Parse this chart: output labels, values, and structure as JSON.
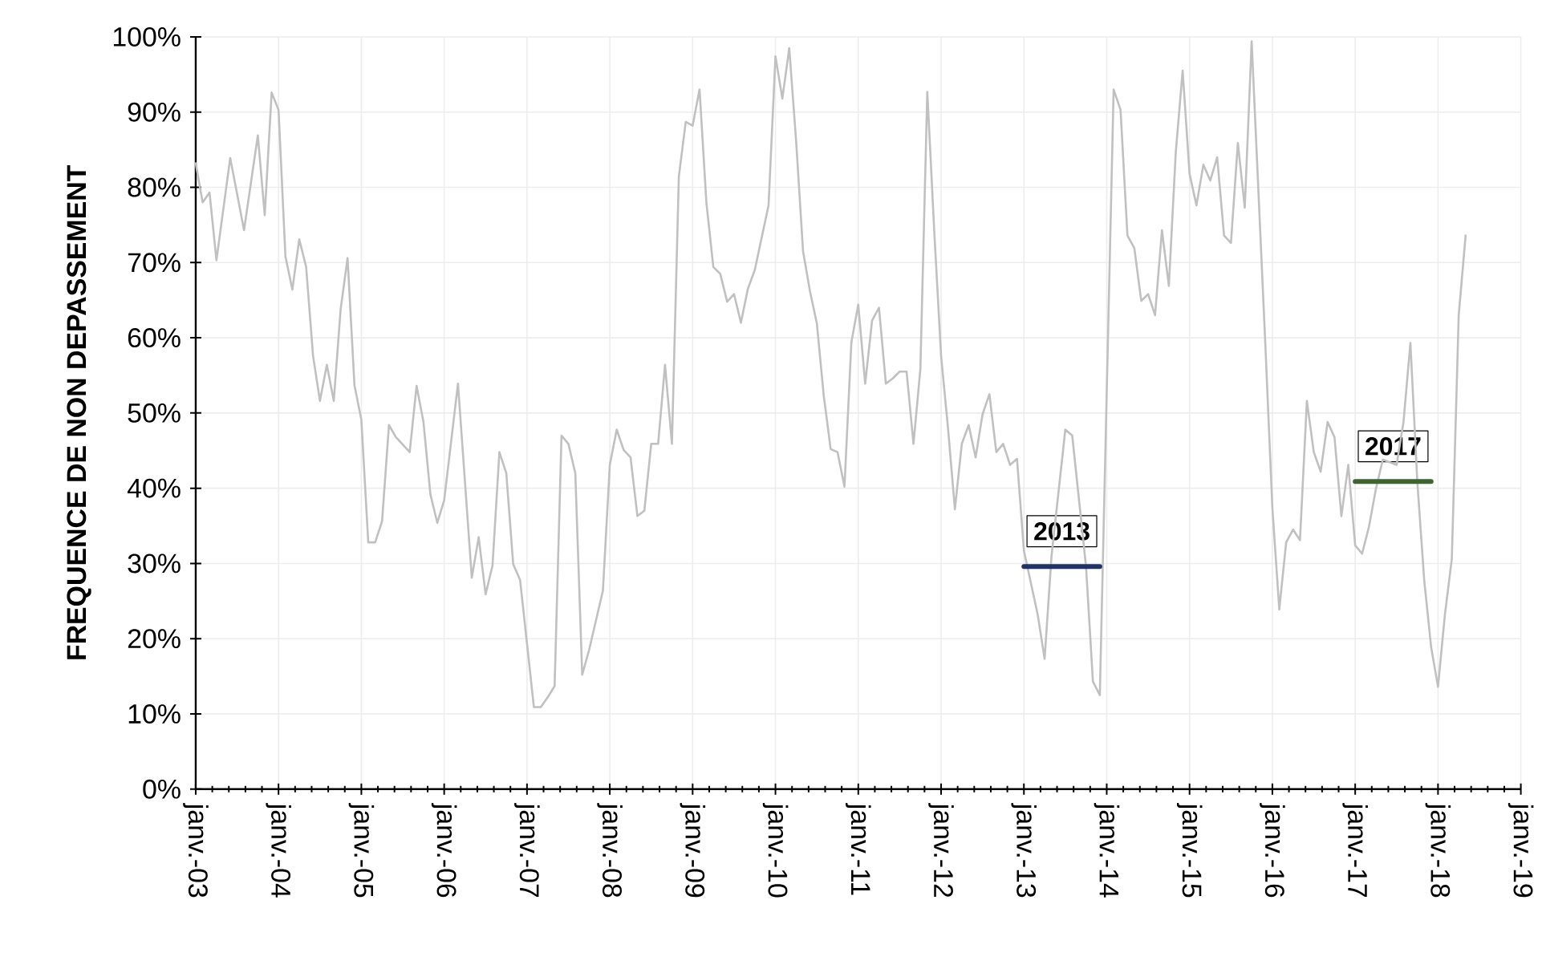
{
  "chart_data": {
    "type": "line",
    "ylabel": "FREQUENCE DE NON DEPASSEMENT",
    "xlim": [
      "2003-01",
      "2019-01"
    ],
    "xticks": [
      {
        "value": "2003-01",
        "label": "janv.-03"
      },
      {
        "value": "2004-01",
        "label": "janv.-04"
      },
      {
        "value": "2005-01",
        "label": "janv.-05"
      },
      {
        "value": "2006-01",
        "label": "janv.-06"
      },
      {
        "value": "2007-01",
        "label": "janv.-07"
      },
      {
        "value": "2008-01",
        "label": "janv.-08"
      },
      {
        "value": "2009-01",
        "label": "janv.-09"
      },
      {
        "value": "2010-01",
        "label": "janv.-10"
      },
      {
        "value": "2011-01",
        "label": "janv.-11"
      },
      {
        "value": "2012-01",
        "label": "janv.-12"
      },
      {
        "value": "2013-01",
        "label": "janv.-13"
      },
      {
        "value": "2014-01",
        "label": "janv.-14"
      },
      {
        "value": "2015-01",
        "label": "janv.-15"
      },
      {
        "value": "2016-01",
        "label": "janv.-16"
      },
      {
        "value": "2017-01",
        "label": "janv.-17"
      },
      {
        "value": "2018-01",
        "label": "janv.-18"
      },
      {
        "value": "2019-01",
        "label": "janv.-19"
      }
    ],
    "ylim": [
      0,
      100
    ],
    "yticks": [
      {
        "value": 0,
        "label": "0%"
      },
      {
        "value": 10,
        "label": "10%"
      },
      {
        "value": 20,
        "label": "20%"
      },
      {
        "value": 30,
        "label": "30%"
      },
      {
        "value": 40,
        "label": "40%"
      },
      {
        "value": 50,
        "label": "50%"
      },
      {
        "value": 60,
        "label": "60%"
      },
      {
        "value": 70,
        "label": "70%"
      },
      {
        "value": 80,
        "label": "80%"
      },
      {
        "value": 90,
        "label": "90%"
      },
      {
        "value": 100,
        "label": "100%"
      }
    ],
    "grid": true,
    "series": [
      {
        "color": "#c0c0c0",
        "x": [
          "2003-01",
          "2003-02",
          "2003-03",
          "2003-04",
          "2003-06",
          "2003-08",
          "2003-10",
          "2003-11",
          "2003-12",
          "2004-01",
          "2004-02",
          "2004-03",
          "2004-04",
          "2004-05",
          "2004-06",
          "2004-07",
          "2004-08",
          "2004-09",
          "2004-10",
          "2004-11",
          "2004-12",
          "2005-01",
          "2005-02",
          "2005-03",
          "2005-04",
          "2005-05",
          "2005-06",
          "2005-08",
          "2005-09",
          "2005-10",
          "2005-11",
          "2005-12",
          "2006-01",
          "2006-03",
          "2006-05",
          "2006-06",
          "2006-07",
          "2006-08",
          "2006-09",
          "2006-10",
          "2006-11",
          "2006-12",
          "2007-02",
          "2007-03",
          "2007-04",
          "2007-05",
          "2007-06",
          "2007-07",
          "2007-08",
          "2007-09",
          "2007-10",
          "2007-12",
          "2008-01",
          "2008-02",
          "2008-03",
          "2008-04",
          "2008-05",
          "2008-06",
          "2008-07",
          "2008-08",
          "2008-09",
          "2008-10",
          "2008-11",
          "2008-12",
          "2009-01",
          "2009-02",
          "2009-03",
          "2009-04",
          "2009-05",
          "2009-06",
          "2009-07",
          "2009-08",
          "2009-09",
          "2009-10",
          "2009-11",
          "2009-12",
          "2010-01",
          "2010-02",
          "2010-03",
          "2010-04",
          "2010-05",
          "2010-06",
          "2010-07",
          "2010-08",
          "2010-09",
          "2010-10",
          "2010-11",
          "2010-12",
          "2011-01",
          "2011-02",
          "2011-03",
          "2011-04",
          "2011-05",
          "2011-06",
          "2011-07",
          "2011-08",
          "2011-09",
          "2011-10",
          "2011-11",
          "2011-12",
          "2012-01",
          "2012-02",
          "2012-03",
          "2012-04",
          "2012-05",
          "2012-06",
          "2012-07",
          "2012-08",
          "2012-09",
          "2012-10",
          "2012-11",
          "2012-12",
          "2013-01",
          "2013-03",
          "2013-04",
          "2013-05",
          "2013-07",
          "2013-08",
          "2013-10",
          "2013-11",
          "2013-12",
          "2014-02",
          "2014-03",
          "2014-04",
          "2014-05",
          "2014-06",
          "2014-07",
          "2014-08",
          "2014-09",
          "2014-10",
          "2014-11",
          "2014-12",
          "2015-01",
          "2015-02",
          "2015-03",
          "2015-04",
          "2015-05",
          "2015-06",
          "2015-07",
          "2015-08",
          "2015-09",
          "2015-10",
          "2015-12",
          "2016-01",
          "2016-02",
          "2016-03",
          "2016-04",
          "2016-05",
          "2016-06",
          "2016-07",
          "2016-08",
          "2016-09",
          "2016-10",
          "2016-11",
          "2016-12",
          "2017-01",
          "2017-02",
          "2017-03",
          "2017-04",
          "2017-05",
          "2017-07",
          "2017-08",
          "2017-09",
          "2017-10",
          "2017-11",
          "2017-12",
          "2018-01",
          "2018-02",
          "2018-03",
          "2018-04",
          "2018-05"
        ],
        "values": [
          83.2,
          78.0,
          79.3,
          70.3,
          83.9,
          74.3,
          86.9,
          76.3,
          92.6,
          90.3,
          70.8,
          66.4,
          73.1,
          69.4,
          57.6,
          51.6,
          56.4,
          51.6,
          63.8,
          70.6,
          53.7,
          49.1,
          32.8,
          32.8,
          35.6,
          48.4,
          46.8,
          44.8,
          53.6,
          48.8,
          39.2,
          35.4,
          38.4,
          53.9,
          28.1,
          33.5,
          25.9,
          29.7,
          44.8,
          42.0,
          29.9,
          27.8,
          10.9,
          10.9,
          12.2,
          13.7,
          47.0,
          45.9,
          42.0,
          15.2,
          18.5,
          26.4,
          43.1,
          47.8,
          45.1,
          44.1,
          36.3,
          37.0,
          45.9,
          45.9,
          56.4,
          45.9,
          81.4,
          88.7,
          88.2,
          93.0,
          77.9,
          69.4,
          68.5,
          64.8,
          65.8,
          62.0,
          66.5,
          69.0,
          73.3,
          77.6,
          97.4,
          91.8,
          98.5,
          86.1,
          71.5,
          66.2,
          61.9,
          52.3,
          45.2,
          44.8,
          40.2,
          59.4,
          64.4,
          53.9,
          62.3,
          64.0,
          53.9,
          54.6,
          55.5,
          55.5,
          45.9,
          55.9,
          92.7,
          74.3,
          57.6,
          48.0,
          37.2,
          45.9,
          48.4,
          44.1,
          49.8,
          52.5,
          44.8,
          45.9,
          43.1,
          43.9,
          31.7,
          23.2,
          17.3,
          31.0,
          47.8,
          47.0,
          29.6,
          14.3,
          12.5,
          93.0,
          90.3,
          73.6,
          71.9,
          64.9,
          65.8,
          63.0,
          74.3,
          66.9,
          84.6,
          95.5,
          81.8,
          77.6,
          83.0,
          80.9,
          84.0,
          73.6,
          72.6,
          85.9,
          77.3,
          99.4,
          58.7,
          37.4,
          23.9,
          32.8,
          34.5,
          33.1,
          51.6,
          44.8,
          42.2,
          48.8,
          46.8,
          36.3,
          43.1,
          32.4,
          31.3,
          34.9,
          39.9,
          43.8,
          43.1,
          48.8,
          59.3,
          40.9,
          27.8,
          18.9,
          13.6,
          23.2,
          30.6,
          63.0,
          73.6
        ]
      },
      {
        "name": "2013",
        "color": "#1f3368",
        "x": [
          "2013-01",
          "2013-12"
        ],
        "values": [
          29.6,
          29.6
        ]
      },
      {
        "name": "2017",
        "color": "#3e6530",
        "x": [
          "2017-01",
          "2017-12"
        ],
        "values": [
          40.9,
          40.9
        ]
      }
    ]
  }
}
